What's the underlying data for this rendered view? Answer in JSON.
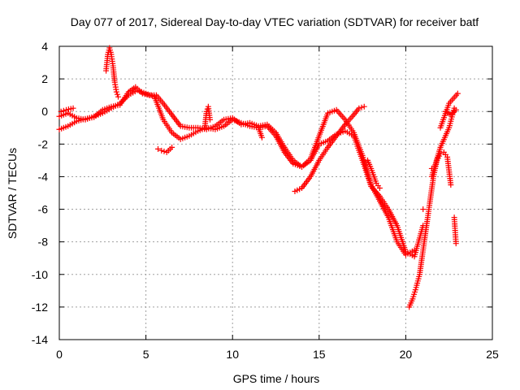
{
  "chart_data": {
    "type": "scatter",
    "title": "Day 077 of 2017, Sidereal Day-to-day VTEC variation (SDTVAR) for receiver batf",
    "xlabel": "GPS time / hours",
    "ylabel": "SDTVAR / TECUs",
    "xlim": [
      0,
      25
    ],
    "ylim": [
      -14,
      4
    ],
    "xticks": [
      0,
      5,
      10,
      15,
      20,
      25
    ],
    "yticks": [
      -14,
      -12,
      -10,
      -8,
      -6,
      -4,
      -2,
      0,
      2,
      4
    ],
    "xtick_labels": [
      "0",
      "5",
      "10",
      "15",
      "20",
      "25"
    ],
    "ytick_labels": [
      "-14",
      "-12",
      "-10",
      "-8",
      "-6",
      "-4",
      "-2",
      "0",
      "2",
      "4"
    ],
    "grid": true,
    "marker": "+",
    "color": "#ff0000",
    "series": [
      {
        "points": [
          [
            0.0,
            -1.1
          ],
          [
            0.5,
            -0.9
          ],
          [
            1.0,
            -0.6
          ],
          [
            1.5,
            -0.45
          ],
          [
            2.0,
            -0.35
          ],
          [
            2.5,
            0.1
          ],
          [
            3.0,
            0.3
          ],
          [
            3.5,
            0.4
          ],
          [
            4.0,
            1.2
          ],
          [
            4.4,
            1.5
          ],
          [
            4.8,
            1.1
          ],
          [
            5.2,
            1.0
          ],
          [
            5.6,
            1.0
          ],
          [
            6.0,
            0.5
          ],
          [
            6.5,
            -0.2
          ],
          [
            7.0,
            -0.9
          ],
          [
            7.5,
            -1.0
          ],
          [
            8.0,
            -1.0
          ],
          [
            8.5,
            -1.1
          ],
          [
            9.0,
            -0.9
          ],
          [
            9.5,
            -0.5
          ],
          [
            10.0,
            -0.4
          ],
          [
            10.5,
            -0.8
          ],
          [
            11.0,
            -0.7
          ],
          [
            11.5,
            -0.9
          ],
          [
            12.0,
            -0.8
          ],
          [
            12.5,
            -1.3
          ],
          [
            13.0,
            -2.2
          ],
          [
            13.5,
            -3.0
          ],
          [
            14.0,
            -3.4
          ],
          [
            14.5,
            -2.9
          ],
          [
            15.0,
            -1.5
          ],
          [
            15.5,
            -0.1
          ],
          [
            16.0,
            0.1
          ],
          [
            16.5,
            -0.5
          ],
          [
            17.0,
            -1.3
          ],
          [
            17.5,
            -2.7
          ],
          [
            18.0,
            -4.5
          ],
          [
            18.5,
            -5.5
          ],
          [
            19.0,
            -6.5
          ],
          [
            19.5,
            -8.0
          ],
          [
            20.0,
            -8.8
          ],
          [
            20.5,
            -8.5
          ],
          [
            21.0,
            -6.0
          ],
          [
            21.5,
            -3.5
          ],
          [
            22.0,
            -1.0
          ],
          [
            22.5,
            0.5
          ],
          [
            23.0,
            1.1
          ]
        ]
      },
      {
        "points": [
          [
            0.0,
            -0.3
          ],
          [
            0.5,
            -0.1
          ],
          [
            1.0,
            -0.4
          ],
          [
            1.5,
            -0.5
          ],
          [
            2.0,
            -0.3
          ],
          [
            2.5,
            -0.1
          ],
          [
            3.0,
            0.2
          ],
          [
            3.5,
            0.5
          ],
          [
            4.0,
            1.0
          ],
          [
            4.5,
            1.3
          ],
          [
            5.0,
            1.1
          ],
          [
            5.5,
            0.9
          ],
          [
            6.0,
            -0.5
          ],
          [
            6.5,
            -1.3
          ],
          [
            7.0,
            -1.7
          ],
          [
            7.5,
            -1.5
          ],
          [
            8.0,
            -1.2
          ],
          [
            8.5,
            -1.0
          ],
          [
            9.0,
            -1.1
          ],
          [
            9.5,
            -0.9
          ],
          [
            10.0,
            -0.5
          ],
          [
            10.5,
            -0.7
          ],
          [
            11.0,
            -0.9
          ],
          [
            11.5,
            -1.0
          ],
          [
            12.0,
            -0.9
          ],
          [
            12.5,
            -1.5
          ],
          [
            13.0,
            -2.5
          ],
          [
            13.5,
            -3.2
          ],
          [
            14.0,
            -3.4
          ],
          [
            14.5,
            -3.0
          ],
          [
            15.0,
            -2.0
          ],
          [
            15.5,
            -1.8
          ],
          [
            16.0,
            -1.4
          ],
          [
            16.5,
            -1.2
          ],
          [
            17.0,
            -1.5
          ],
          [
            17.5,
            -3.0
          ],
          [
            18.0,
            -4.6
          ],
          [
            18.5,
            -5.2
          ],
          [
            19.0,
            -6.0
          ],
          [
            19.5,
            -7.0
          ],
          [
            20.0,
            -8.6
          ],
          [
            20.5,
            -8.9
          ],
          [
            21.0,
            -7.0
          ],
          [
            21.5,
            -4.0
          ],
          [
            22.0,
            -2.2
          ],
          [
            22.5,
            -1.0
          ],
          [
            22.8,
            0.2
          ]
        ]
      },
      {
        "points": [
          [
            0.1,
            0.0
          ],
          [
            0.4,
            0.1
          ],
          [
            0.8,
            0.2
          ],
          [
            2.7,
            2.5
          ],
          [
            2.8,
            3.5
          ],
          [
            2.9,
            3.9
          ],
          [
            3.0,
            3.5
          ],
          [
            3.1,
            2.8
          ],
          [
            3.2,
            1.8
          ],
          [
            3.3,
            1.2
          ],
          [
            3.4,
            0.9
          ],
          [
            5.7,
            -2.3
          ],
          [
            5.9,
            -2.4
          ],
          [
            6.2,
            -2.5
          ],
          [
            6.5,
            -2.2
          ],
          [
            8.4,
            -1.0
          ],
          [
            8.5,
            0.0
          ],
          [
            8.6,
            0.3
          ],
          [
            8.7,
            -0.5
          ],
          [
            11.5,
            -1.0
          ],
          [
            11.7,
            -1.6
          ],
          [
            13.6,
            -4.9
          ],
          [
            14.0,
            -4.7
          ],
          [
            14.5,
            -4.0
          ],
          [
            15.0,
            -3.0
          ],
          [
            15.5,
            -2.2
          ],
          [
            16.0,
            -1.5
          ],
          [
            16.5,
            -0.8
          ],
          [
            17.0,
            -0.2
          ],
          [
            17.3,
            0.2
          ],
          [
            17.6,
            0.3
          ],
          [
            17.8,
            -3.0
          ],
          [
            18.0,
            -3.5
          ],
          [
            18.3,
            -4.4
          ],
          [
            18.5,
            -4.7
          ],
          [
            20.2,
            -12.0
          ],
          [
            20.4,
            -11.5
          ],
          [
            20.6,
            -10.8
          ],
          [
            20.8,
            -10.0
          ],
          [
            21.0,
            -8.5
          ],
          [
            21.2,
            -7.0
          ],
          [
            21.4,
            -5.5
          ],
          [
            21.6,
            -4.0
          ],
          [
            21.8,
            -3.0
          ],
          [
            22.0,
            -2.6
          ],
          [
            22.2,
            -2.5
          ],
          [
            22.4,
            -2.8
          ],
          [
            22.6,
            -4.5
          ],
          [
            22.8,
            -6.5
          ],
          [
            22.9,
            -8.1
          ],
          [
            22.3,
            0.0
          ],
          [
            22.6,
            -0.2
          ],
          [
            22.9,
            0.1
          ]
        ]
      }
    ]
  }
}
